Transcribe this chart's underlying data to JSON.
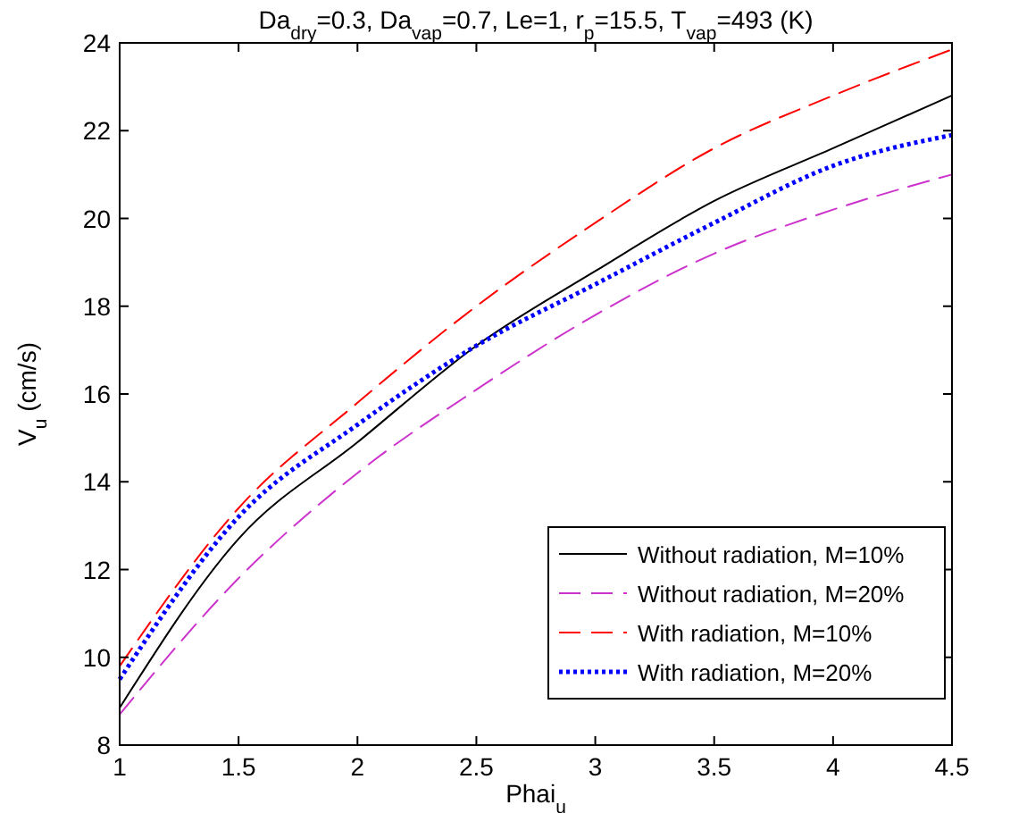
{
  "chart_data": {
    "type": "line",
    "title": "Da$_{dry}$=0.3, Da$_{vap}$=0.7, Le=1, r$_{p}$=15.5, T$_{vap}$=493 (K)",
    "xlabel": "Phai$_{u}$",
    "ylabel": "V$_{u}$ (cm/s)",
    "x": [
      1,
      1.5,
      2,
      2.5,
      3,
      3.5,
      4,
      4.5
    ],
    "series": [
      {
        "name": "Without radiation, M=10%",
        "color": "#000000",
        "line_style": "solid",
        "values": [
          8.85,
          12.7,
          14.9,
          17.1,
          18.8,
          20.4,
          21.6,
          22.8
        ]
      },
      {
        "name": "Without radiation, M=20%",
        "color": "#cc33cc",
        "line_style": "dashed",
        "values": [
          8.7,
          11.8,
          14.2,
          16.1,
          17.8,
          19.2,
          20.2,
          21.0
        ]
      },
      {
        "name": "With radiation, M=10%",
        "color": "#ff0000",
        "line_style": "dashed",
        "values": [
          9.8,
          13.4,
          15.8,
          18.0,
          19.9,
          21.6,
          22.8,
          23.85
        ]
      },
      {
        "name": "With radiation, M=20%",
        "color": "#0000ff",
        "line_style": "dotted",
        "values": [
          9.5,
          13.2,
          15.3,
          17.1,
          18.5,
          19.9,
          21.2,
          21.9
        ]
      }
    ],
    "xlim": [
      1,
      4.5
    ],
    "xticks": [
      1,
      1.5,
      2,
      2.5,
      3,
      3.5,
      4,
      4.5
    ],
    "ylim": [
      8,
      24
    ],
    "yticks": [
      8,
      10,
      12,
      14,
      16,
      18,
      20,
      22,
      24
    ],
    "grid": false,
    "legend": "bottom right",
    "marker": "none"
  }
}
